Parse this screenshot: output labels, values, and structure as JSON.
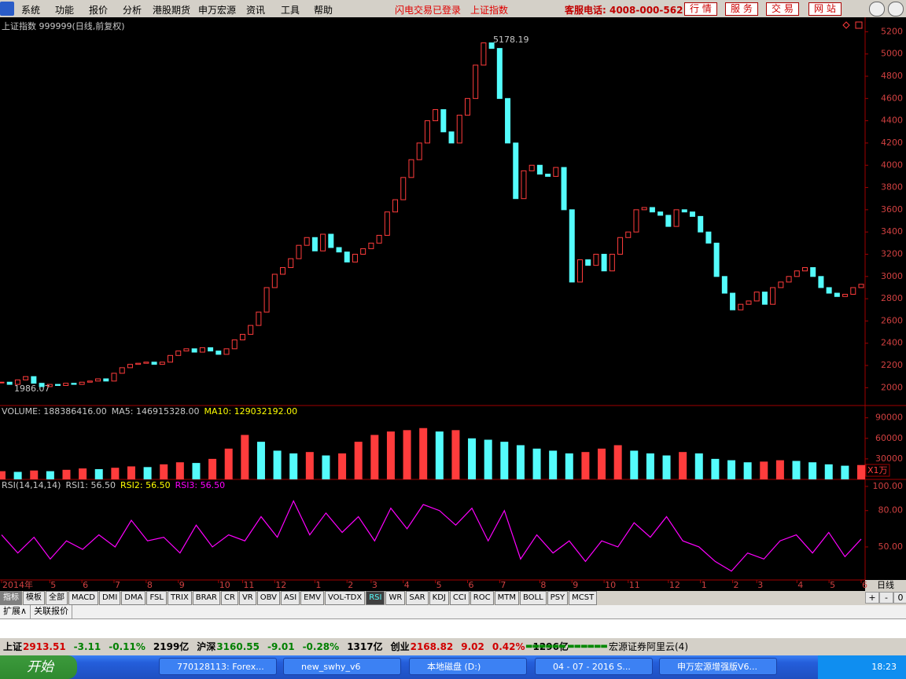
{
  "menu": {
    "items": [
      "系统",
      "功能",
      "报价",
      "分析",
      "港股期货",
      "申万宏源",
      "资讯",
      "工具",
      "帮助"
    ],
    "notices": [
      "闪电交易已登录",
      "上证指数"
    ],
    "hotline": "客服电话: 4008-000-562",
    "buttons": [
      "行 情",
      "服 务",
      "交 易",
      "网 站"
    ]
  },
  "chart_data": [
    {
      "type": "candlestick",
      "title": "上证指数 999999(日线,前复权)",
      "annotations": [
        "5178.19",
        "1986.07"
      ],
      "up_color": "#ff3c3c",
      "down_color": "#54fcfc",
      "values": [
        2050,
        2030,
        2070,
        2100,
        2040,
        2010,
        2030,
        2020,
        2040,
        2030,
        2050,
        2060,
        2080,
        2060,
        2130,
        2180,
        2210,
        2220,
        2230,
        2210,
        2230,
        2290,
        2330,
        2350,
        2320,
        2360,
        2330,
        2300,
        2350,
        2430,
        2480,
        2560,
        2680,
        2900,
        3020,
        3080,
        3160,
        3280,
        3350,
        3230,
        3380,
        3260,
        3220,
        3130,
        3200,
        3250,
        3300,
        3370,
        3580,
        3690,
        3890,
        4050,
        4200,
        4400,
        4500,
        4300,
        4200,
        4450,
        4600,
        4900,
        5100,
        5050,
        4600,
        4200,
        3700,
        3950,
        4000,
        3920,
        3900,
        3980,
        3600,
        2950,
        3150,
        3100,
        3200,
        3050,
        3200,
        3350,
        3400,
        3600,
        3620,
        3580,
        3550,
        3450,
        3600,
        3580,
        3540,
        3400,
        3300,
        3000,
        2850,
        2700,
        2750,
        2780,
        2860,
        2750,
        2900,
        2950,
        3000,
        3050,
        3080,
        3000,
        2900,
        2850,
        2820,
        2840,
        2900,
        2930
      ],
      "ylim": [
        1840,
        5330
      ],
      "yticks": [
        2000,
        2200,
        2400,
        2600,
        2800,
        3000,
        3200,
        3400,
        3600,
        3800,
        4000,
        4200,
        4400,
        4600,
        4800,
        5000,
        5200
      ],
      "xticks": [
        {
          "value": 0,
          "label": "2014年"
        },
        {
          "value": 6,
          "label": "5"
        },
        {
          "value": 10,
          "label": "6"
        },
        {
          "value": 14,
          "label": "7"
        },
        {
          "value": 18,
          "label": "8"
        },
        {
          "value": 22,
          "label": "9"
        },
        {
          "value": 27,
          "label": "10"
        },
        {
          "value": 30,
          "label": "11"
        },
        {
          "value": 34,
          "label": "12"
        },
        {
          "value": 39,
          "label": "1"
        },
        {
          "value": 43,
          "label": "2"
        },
        {
          "value": 46,
          "label": "3"
        },
        {
          "value": 50,
          "label": "4"
        },
        {
          "value": 54,
          "label": "5"
        },
        {
          "value": 58,
          "label": "6"
        },
        {
          "value": 62,
          "label": "7"
        },
        {
          "value": 67,
          "label": "8"
        },
        {
          "value": 71,
          "label": "9"
        },
        {
          "value": 75,
          "label": "10"
        },
        {
          "value": 78,
          "label": "11"
        },
        {
          "value": 83,
          "label": "12"
        },
        {
          "value": 87,
          "label": "1"
        },
        {
          "value": 91,
          "label": "2"
        },
        {
          "value": 94,
          "label": "3"
        },
        {
          "value": 99,
          "label": "4"
        },
        {
          "value": 103,
          "label": "5"
        },
        {
          "value": 107,
          "label": "6"
        }
      ],
      "period": "日线"
    },
    {
      "type": "bar",
      "title": "VOLUME: 188386416.00",
      "indicators": [
        "MA5: 146915328.00",
        "MA10: 129032192.00"
      ],
      "unit": "X1万",
      "up_color": "#ff3c3c",
      "down_color": "#54fcfc",
      "values": [
        12000,
        11000,
        13000,
        12000,
        14000,
        16000,
        15000,
        17000,
        19000,
        18000,
        22000,
        25000,
        24000,
        30000,
        45000,
        65000,
        55000,
        42000,
        38000,
        40000,
        35000,
        38000,
        55000,
        65000,
        70000,
        72000,
        75000,
        70000,
        72000,
        60000,
        58000,
        55000,
        50000,
        45000,
        42000,
        38000,
        40000,
        45000,
        50000,
        42000,
        38000,
        35000,
        40000,
        38000,
        30000,
        28000,
        25000,
        26000,
        28000,
        27000,
        25000,
        22000,
        20000,
        21000
      ],
      "ylim": [
        0,
        108000
      ],
      "yticks": [
        30000,
        60000,
        90000
      ]
    },
    {
      "type": "line",
      "title": "RSI(14,14,14)",
      "indicators": [
        "RSI1: 56.50",
        "RSI2: 56.50",
        "RSI3: 56.50"
      ],
      "color": "#ff00ff",
      "values": [
        60,
        45,
        58,
        40,
        55,
        48,
        60,
        50,
        72,
        55,
        58,
        45,
        68,
        50,
        60,
        55,
        75,
        58,
        88,
        60,
        78,
        62,
        75,
        55,
        82,
        65,
        85,
        80,
        68,
        82,
        55,
        80,
        40,
        60,
        45,
        55,
        38,
        55,
        50,
        70,
        58,
        75,
        55,
        50,
        38,
        30,
        45,
        40,
        55,
        60,
        45,
        62,
        42,
        56.5
      ],
      "ylim": [
        22.7,
        105.8
      ],
      "yticks": [
        {
          "value": 50,
          "label": "50.00"
        },
        {
          "value": 80,
          "label": "80.00"
        },
        {
          "value": 100,
          "label": "100.00"
        }
      ]
    }
  ],
  "tabs": [
    "指标",
    "模板",
    "全部",
    "MACD",
    "DMI",
    "DMA",
    "FSL",
    "TRIX",
    "BRAR",
    "CR",
    "VR",
    "OBV",
    "ASI",
    "EMV",
    "VOL-TDX",
    "RSI",
    "WR",
    "SAR",
    "KDJ",
    "CCI",
    "ROC",
    "MTM",
    "BOLL",
    "PSY",
    "MCST"
  ],
  "zoom_buttons": [
    "+",
    "-",
    "0"
  ],
  "sub_tabs": [
    "扩展∧",
    "关联报价"
  ],
  "status_bar": [
    {
      "text": "上证",
      "color": "#000000"
    },
    {
      "text": "2913.51",
      "color": "#d00000"
    },
    {
      "text": "-3.11",
      "color": "#008000"
    },
    {
      "text": "-0.11%",
      "color": "#008000"
    },
    {
      "text": "2199亿",
      "color": "#000000"
    },
    {
      "text": "沪深",
      "color": "#000000"
    },
    {
      "text": "3160.55",
      "color": "#008000"
    },
    {
      "text": "-9.01",
      "color": "#008000"
    },
    {
      "text": "-0.28%",
      "color": "#008000"
    },
    {
      "text": "1317亿",
      "color": "#000000"
    },
    {
      "text": "创业",
      "color": "#000000"
    },
    {
      "text": "2168.82",
      "color": "#d00000"
    },
    {
      "text": "9.02",
      "color": "#d00000"
    },
    {
      "text": "0.42%",
      "color": "#d00000"
    },
    {
      "text": "1296亿",
      "color": "#000000"
    }
  ],
  "broker": "宏源证券阿里云(4)",
  "taskbar": {
    "start": "开始",
    "items": [
      "770128113: Forex...",
      "new_swhy_v6",
      "本地磁盘 (D:)",
      "04 - 07 - 2016 S...",
      "申万宏源增强版V6..."
    ],
    "clock": "18:23"
  }
}
